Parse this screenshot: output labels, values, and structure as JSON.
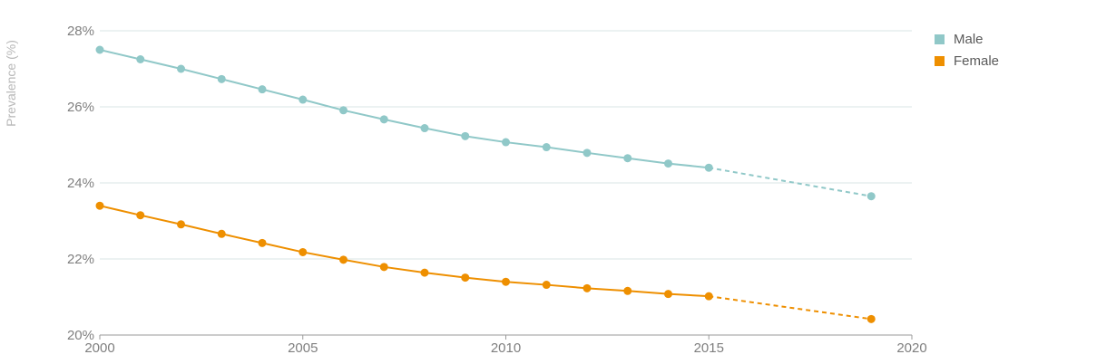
{
  "chart_data": {
    "type": "line",
    "title": "",
    "xlabel": "",
    "ylabel": "Prevalence (%)",
    "xlim": [
      2000,
      2020
    ],
    "ylim": [
      20,
      28
    ],
    "x_ticks": [
      2000,
      2005,
      2010,
      2015,
      2020
    ],
    "y_ticks": [
      20,
      22,
      24,
      26,
      28
    ],
    "y_tick_labels": [
      "20%",
      "22%",
      "24%",
      "26%",
      "28%"
    ],
    "grid": "horizontal",
    "legend_position": "top-right",
    "series": [
      {
        "name": "Male",
        "color": "#90c8c8",
        "x": [
          2000,
          2001,
          2002,
          2003,
          2004,
          2005,
          2006,
          2007,
          2008,
          2009,
          2010,
          2011,
          2012,
          2013,
          2014,
          2015,
          2019
        ],
        "values": [
          27.5,
          27.25,
          27.0,
          26.73,
          26.46,
          26.19,
          25.91,
          25.67,
          25.44,
          25.23,
          25.07,
          24.94,
          24.79,
          24.65,
          24.51,
          24.4,
          23.65
        ],
        "projected_from_index": 15
      },
      {
        "name": "Female",
        "color": "#ee8f00",
        "x": [
          2000,
          2001,
          2002,
          2003,
          2004,
          2005,
          2006,
          2007,
          2008,
          2009,
          2010,
          2011,
          2012,
          2013,
          2014,
          2015,
          2019
        ],
        "values": [
          23.4,
          23.15,
          22.91,
          22.66,
          22.42,
          22.18,
          21.98,
          21.79,
          21.64,
          21.51,
          21.4,
          21.32,
          21.23,
          21.16,
          21.08,
          21.02,
          20.42
        ],
        "projected_from_index": 15
      }
    ]
  }
}
